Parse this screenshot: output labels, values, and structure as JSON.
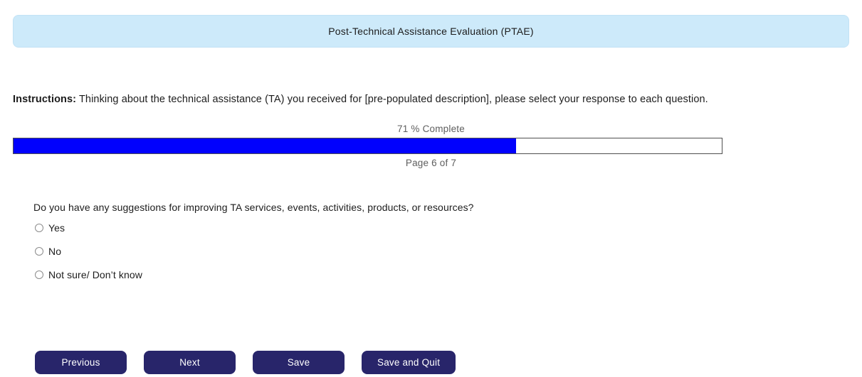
{
  "header": {
    "title": "Post-Technical Assistance Evaluation (PTAE)"
  },
  "instructions": {
    "label": "Instructions:",
    "text": " Thinking about the technical assistance (TA) you received for [pre-populated description], please select your response to each question."
  },
  "progress": {
    "percent": 71,
    "percent_label": "71 % Complete",
    "page_label": "Page 6 of 7"
  },
  "question": {
    "text": "Do you have any suggestions for improving TA services, events, activities, products, or resources?",
    "options": [
      {
        "label": "Yes",
        "selected": false
      },
      {
        "label": "No",
        "selected": false
      },
      {
        "label": "Not sure/ Don’t know",
        "selected": false
      }
    ]
  },
  "buttons": {
    "previous": "Previous",
    "next": "Next",
    "save": "Save",
    "save_and_quit": "Save and Quit"
  },
  "colors": {
    "header_bg": "#cdeafa",
    "button_bg": "#28256a",
    "progress_fill": "#0101fd",
    "muted_text": "#5e5e5e"
  }
}
